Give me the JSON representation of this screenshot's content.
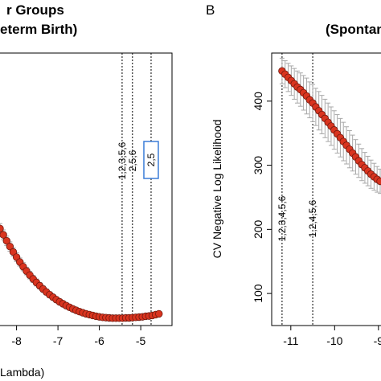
{
  "chart_data": [
    {
      "panel": "",
      "type": "scatter",
      "title_lines": [
        "r Groups",
        "eterm Birth)"
      ],
      "xlabel": "Lambda)",
      "ylabel": "",
      "x_ticks": [
        "-8",
        "-7",
        "-6",
        "-5"
      ],
      "y_ticks": [],
      "xlim": [
        -8.4,
        -4.4
      ],
      "ylim": [
        0,
        1
      ],
      "vlines": [
        {
          "x": -5.45,
          "label": "1,2,3,5,6",
          "boxed": false
        },
        {
          "x": -5.2,
          "label": "2,5,6",
          "boxed": false
        },
        {
          "x": -4.75,
          "label": "2,5",
          "boxed": true
        }
      ],
      "points": {
        "x": [
          -8.4,
          -8.32,
          -8.24,
          -8.16,
          -8.08,
          -8.0,
          -7.92,
          -7.84,
          -7.76,
          -7.68,
          -7.6,
          -7.52,
          -7.44,
          -7.36,
          -7.28,
          -7.2,
          -7.12,
          -7.04,
          -6.96,
          -6.88,
          -6.8,
          -6.72,
          -6.64,
          -6.56,
          -6.48,
          -6.4,
          -6.32,
          -6.24,
          -6.16,
          -6.08,
          -6.0,
          -5.92,
          -5.84,
          -5.76,
          -5.68,
          -5.6,
          -5.52,
          -5.44,
          -5.36,
          -5.28,
          -5.2,
          -5.12,
          -5.04,
          -4.96,
          -4.88,
          -4.8,
          -4.72,
          -4.64,
          -4.56
        ],
        "y": [
          0.356,
          0.333,
          0.311,
          0.29,
          0.27,
          0.251,
          0.233,
          0.216,
          0.2,
          0.185,
          0.171,
          0.158,
          0.146,
          0.134,
          0.123,
          0.113,
          0.104,
          0.095,
          0.087,
          0.08,
          0.073,
          0.067,
          0.061,
          0.056,
          0.051,
          0.047,
          0.043,
          0.04,
          0.037,
          0.034,
          0.032,
          0.03,
          0.029,
          0.028,
          0.027,
          0.027,
          0.027,
          0.027,
          0.028,
          0.028,
          0.029,
          0.03,
          0.031,
          0.032,
          0.034,
          0.035,
          0.037,
          0.04,
          0.043
        ],
        "error": [
          0.018,
          0.018,
          0.017,
          0.017,
          0.016,
          0.016,
          0.015,
          0.015,
          0.014,
          0.014,
          0.013,
          0.013,
          0.012,
          0.012,
          0.011,
          0.011,
          0.01,
          0.01,
          0.01,
          0.009,
          0.009,
          0.009,
          0.008,
          0.008,
          0.008,
          0.008,
          0.007,
          0.007,
          0.007,
          0.007,
          0.007,
          0.006,
          0.006,
          0.006,
          0.006,
          0.006,
          0.006,
          0.006,
          0.006,
          0.006,
          0.006,
          0.006,
          0.006,
          0.006,
          0.006,
          0.006,
          0.006,
          0.006,
          0.006
        ]
      }
    },
    {
      "panel": "B",
      "type": "scatter",
      "title_lines": [
        "(Spontan"
      ],
      "xlabel": "",
      "ylabel": "CV Negative Log Likelihood",
      "x_ticks": [
        "-11",
        "-10",
        "-9"
      ],
      "y_ticks": [
        "100",
        "200",
        "300",
        "400"
      ],
      "xlim": [
        -11.4,
        -8.85
      ],
      "ylim": [
        50,
        475
      ],
      "vlines": [
        {
          "x": -11.2,
          "label": "1,2,3,4,5,6",
          "boxed": false
        },
        {
          "x": -10.5,
          "label": "1,2,4,5,6",
          "boxed": false
        }
      ],
      "points": {
        "x": [
          -11.2,
          -11.13,
          -11.06,
          -10.99,
          -10.92,
          -10.85,
          -10.78,
          -10.71,
          -10.64,
          -10.57,
          -10.5,
          -10.43,
          -10.36,
          -10.29,
          -10.22,
          -10.15,
          -10.08,
          -10.01,
          -9.94,
          -9.87,
          -9.8,
          -9.73,
          -9.66,
          -9.59,
          -9.52,
          -9.45,
          -9.38,
          -9.31,
          -9.24,
          -9.17,
          -9.1,
          -9.03,
          -8.96
        ],
        "y": [
          447,
          442,
          437,
          432,
          427,
          422,
          418,
          413,
          408,
          402,
          397,
          391,
          385,
          379,
          373,
          367,
          361,
          355,
          349,
          343,
          337,
          331,
          325,
          319,
          313,
          307,
          301,
          296,
          291,
          286,
          282,
          278,
          275
        ],
        "error": [
          20,
          21,
          22,
          23,
          24,
          25,
          26,
          27,
          28,
          28,
          29,
          29,
          30,
          30,
          30,
          30,
          30,
          30,
          30,
          30,
          30,
          29,
          29,
          28,
          27,
          26,
          25,
          24,
          23,
          22,
          21,
          20,
          19
        ]
      }
    }
  ]
}
